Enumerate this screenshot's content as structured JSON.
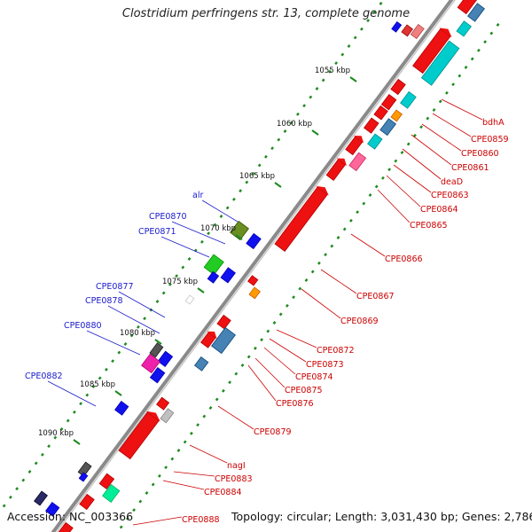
{
  "title": "Clostridium perfringens str. 13, complete genome",
  "footer": {
    "accession": "Accession: NC_003366",
    "topology": "Topology: circular; Length: 3,031,430 bp; Genes: 2,786"
  },
  "scale_labels": [
    "1055 kbp",
    "1060 kbp",
    "1065 kbp",
    "1070 kbp",
    "1075 kbp",
    "1080 kbp",
    "1085 kbp",
    "1090 kbp"
  ],
  "forward_genes": [
    "alr",
    "CPE0870",
    "CPE0871",
    "CPE0877",
    "CPE0878",
    "CPE0880",
    "CPE0882"
  ],
  "reverse_genes": [
    "bdhA",
    "CPE0859",
    "CPE0860",
    "CPE0861",
    "deaD",
    "CPE0863",
    "CPE0864",
    "CPE0865",
    "CPE0866",
    "CPE0867",
    "CPE0869",
    "CPE0872",
    "CPE0873",
    "CPE0874",
    "CPE0875",
    "CPE0876",
    "CPE0879",
    "nagI",
    "CPE0883",
    "CPE0884",
    "CPE0888"
  ],
  "colors": {
    "forward_label": "#1a1acc",
    "reverse_label": "#cc0000",
    "backbone": "#8a8a8a",
    "tick": "#1e8a1e"
  }
}
